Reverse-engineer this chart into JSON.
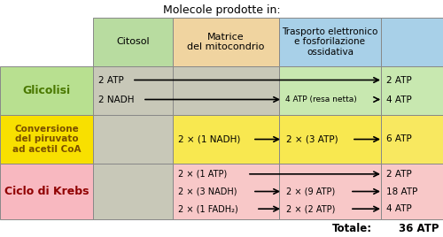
{
  "title": "Molecole prodotte in:",
  "col_headers": [
    "Citosol",
    "Matrice\ndel mitocondrio",
    "Trasporto elettronico\ne fosforilazione\nossidativa"
  ],
  "row_labels": [
    "Glicolisi",
    "Conversione\ndel piruvato\nad acetil CoA",
    "Ciclo di Krebs"
  ],
  "col_header_bg": [
    "#b8dca0",
    "#f0d4a0",
    "#a8d0e8"
  ],
  "row_label_bg_green": "#b8e090",
  "row_label_bg_yellow": "#f8e000",
  "row_label_bg_pink": "#f8b8c0",
  "cell_bg_gray": "#c8c8b8",
  "cell_bg_green": "#c8e8b0",
  "cell_bg_yellow_light": "#f8e850",
  "cell_bg_pink_light": "#f8c8c8",
  "cell_bg_blue_light": "#b8ccd8",
  "right_col_bg_green": "#c8e8b0",
  "right_col_bg_yellow": "#f8e860",
  "right_col_bg_pink": "#f8c8c8",
  "totale_text": "Totale:",
  "totale_value": "36 ATP"
}
